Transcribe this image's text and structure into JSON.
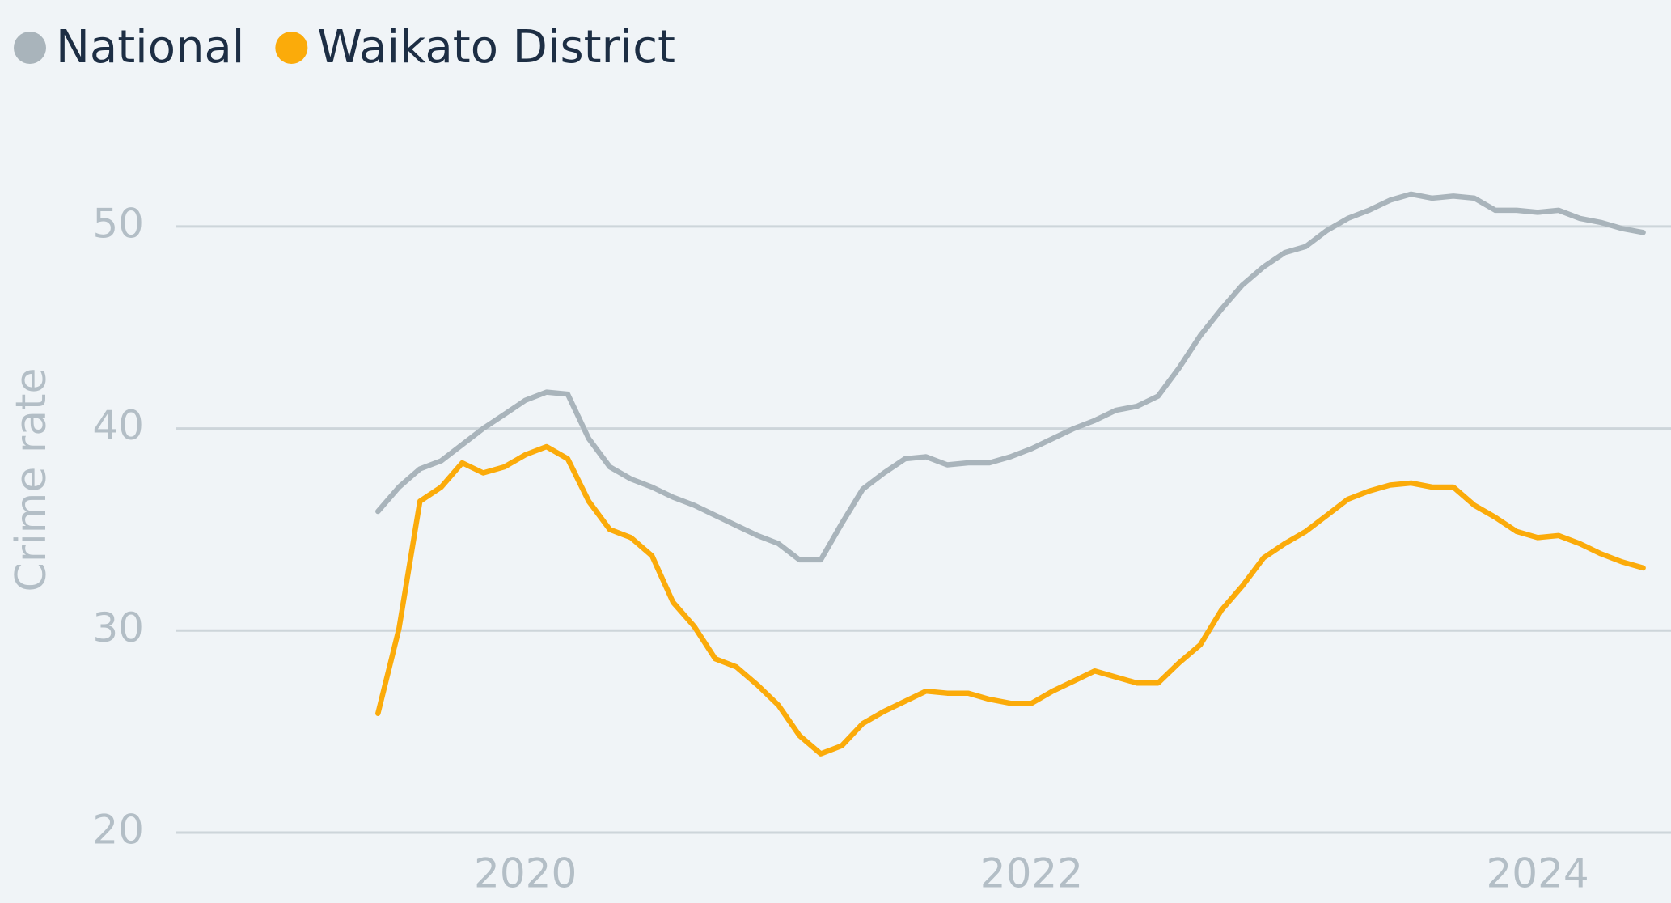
{
  "chart_data": {
    "type": "line",
    "y_label": "Crime rate",
    "legend": "top-left",
    "grid": true,
    "xlim": [
      2018.617,
      2024.527
    ],
    "xticks": [
      2020,
      2022,
      2024
    ],
    "ylim": [
      20,
      55
    ],
    "yticks": [
      20,
      30,
      40,
      50
    ],
    "x": [
      2019.417,
      2019.5,
      2019.583,
      2019.667,
      2019.75,
      2019.833,
      2019.917,
      2020,
      2020.083,
      2020.167,
      2020.25,
      2020.333,
      2020.417,
      2020.5,
      2020.583,
      2020.667,
      2020.75,
      2020.833,
      2020.917,
      2021,
      2021.083,
      2021.167,
      2021.25,
      2021.333,
      2021.417,
      2021.5,
      2021.583,
      2021.667,
      2021.75,
      2021.833,
      2021.917,
      2022,
      2022.083,
      2022.167,
      2022.25,
      2022.333,
      2022.417,
      2022.5,
      2022.583,
      2022.667,
      2022.75,
      2022.833,
      2022.917,
      2023,
      2023.083,
      2023.167,
      2023.25,
      2023.333,
      2023.417,
      2023.5,
      2023.583,
      2023.667,
      2023.75,
      2023.833,
      2023.917,
      2024,
      2024.083,
      2024.167,
      2024.25,
      2024.333,
      2024.417
    ],
    "series": [
      {
        "name": "National",
        "color": "#a9b4bb",
        "values": [
          35.9,
          37.1,
          38.0,
          38.4,
          39.2,
          40.0,
          40.7,
          41.4,
          41.8,
          41.7,
          39.5,
          38.1,
          37.5,
          37.1,
          36.6,
          36.2,
          35.7,
          35.2,
          34.7,
          34.3,
          33.5,
          33.5,
          35.3,
          37.0,
          37.8,
          38.5,
          38.6,
          38.2,
          38.3,
          38.3,
          38.6,
          39.0,
          39.5,
          40.0,
          40.4,
          40.9,
          41.1,
          41.6,
          43.0,
          44.6,
          45.9,
          47.1,
          48.0,
          48.7,
          49.0,
          49.8,
          50.4,
          50.8,
          51.3,
          51.6,
          51.4,
          51.5,
          51.4,
          50.8,
          50.8,
          50.7,
          50.8,
          50.4,
          50.2,
          49.9,
          49.7
        ]
      },
      {
        "name": "Waikato District",
        "color": "#fbab0a",
        "values": [
          25.9,
          30.1,
          36.4,
          37.1,
          38.3,
          37.8,
          38.1,
          38.7,
          39.1,
          38.5,
          36.4,
          35.0,
          34.6,
          33.7,
          31.4,
          30.2,
          28.6,
          28.2,
          27.3,
          26.3,
          24.8,
          23.9,
          24.3,
          25.4,
          26.0,
          26.5,
          27.0,
          26.9,
          26.9,
          26.6,
          26.4,
          26.4,
          27.0,
          27.5,
          28.0,
          27.7,
          27.4,
          27.4,
          28.4,
          29.3,
          31.0,
          32.2,
          33.6,
          34.3,
          34.9,
          35.7,
          36.5,
          36.9,
          37.2,
          37.3,
          37.1,
          37.1,
          36.2,
          35.6,
          34.9,
          34.6,
          34.7,
          34.3,
          33.8,
          33.4,
          33.1
        ]
      }
    ]
  }
}
